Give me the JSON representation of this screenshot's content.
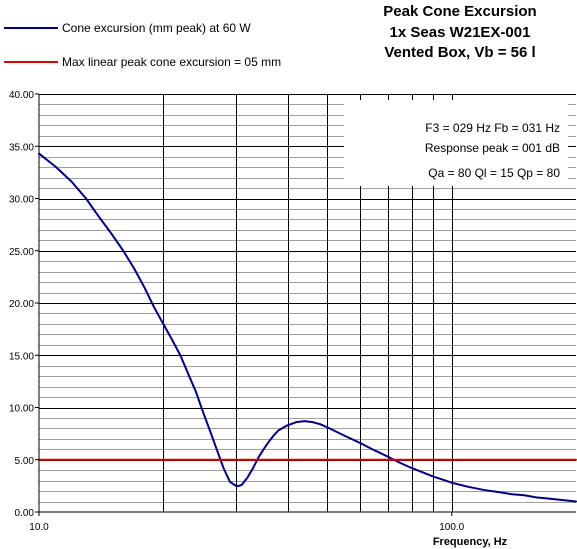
{
  "chart_data": {
    "type": "line",
    "title": [
      "Peak Cone Excursion",
      "1x Seas W21EX-001",
      "Vented Box, Vb = 56 l"
    ],
    "xlabel": "Frequency, Hz",
    "ylabel": "",
    "xscale": "log",
    "xlim": [
      10,
      200
    ],
    "ylim": [
      0,
      40
    ],
    "y_ticks": [
      "0.00",
      "5.00",
      "10.00",
      "15.00",
      "20.00",
      "25.00",
      "30.00",
      "35.00",
      "40.00"
    ],
    "x_tick_labels": [
      {
        "x": 10,
        "label": "10.0"
      },
      {
        "x": 100,
        "label": "100.0"
      }
    ],
    "grid": {
      "horizontal_minor_step": 1,
      "horizontal_major_step": 5,
      "vertical_decade_lines": [
        20,
        30,
        40,
        50,
        60,
        70,
        80,
        90,
        100
      ]
    },
    "legend_placement": "top-left",
    "series": [
      {
        "name": "Cone excursion (mm peak) at 60 W",
        "color": "#000080",
        "x": [
          10,
          11,
          12,
          13,
          14,
          15,
          16,
          17,
          18,
          19,
          20,
          21,
          22,
          23,
          24,
          25,
          26,
          27,
          28,
          29,
          30,
          30.5,
          31,
          32,
          33,
          34,
          35,
          36,
          37,
          38,
          40,
          42,
          44,
          46,
          48,
          50,
          55,
          60,
          65,
          70,
          75,
          80,
          85,
          90,
          95,
          100,
          110,
          120,
          130,
          140,
          150,
          160,
          170,
          180,
          190,
          200
        ],
        "y": [
          34.3,
          33.0,
          31.6,
          30.0,
          28.2,
          26.6,
          25.0,
          23.3,
          21.5,
          19.6,
          18.0,
          16.5,
          15.0,
          13.2,
          11.5,
          9.5,
          7.7,
          5.9,
          4.2,
          2.9,
          2.5,
          2.5,
          2.6,
          3.3,
          4.2,
          5.2,
          6.0,
          6.7,
          7.3,
          7.8,
          8.3,
          8.6,
          8.7,
          8.6,
          8.4,
          8.1,
          7.3,
          6.6,
          5.9,
          5.3,
          4.7,
          4.2,
          3.8,
          3.4,
          3.1,
          2.8,
          2.4,
          2.1,
          1.9,
          1.7,
          1.6,
          1.4,
          1.3,
          1.2,
          1.1,
          1.0
        ]
      },
      {
        "name": "Max linear peak cone excursion = 05 mm",
        "color": "#e00000",
        "x": [
          10,
          200
        ],
        "y": [
          5,
          5
        ]
      }
    ],
    "annotations": [
      "F3 = 029 Hz  Fb = 031 Hz",
      "Response peak = 001 dB",
      "Qa = 80  Ql = 15  Qp = 80"
    ]
  }
}
